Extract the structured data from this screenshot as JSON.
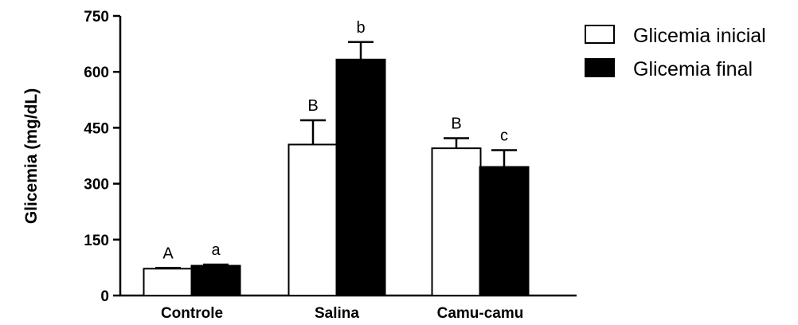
{
  "chart_data": {
    "type": "bar",
    "ylabel": "Glicemia (mg/dL)",
    "xlabel": "",
    "ylim": [
      0,
      750
    ],
    "yticks": [
      0,
      150,
      300,
      450,
      600,
      750
    ],
    "categories": [
      "Controle",
      "Salina",
      "Camu-camu"
    ],
    "series": [
      {
        "name": "Glicemia inicial",
        "fill": "#ffffff",
        "values": [
          72,
          405,
          395
        ],
        "errors": [
          2,
          65,
          27
        ],
        "labels": [
          "A",
          "B",
          "B"
        ]
      },
      {
        "name": "Glicemia final",
        "fill": "#000000",
        "values": [
          80,
          633,
          345
        ],
        "errors": [
          3,
          47,
          45
        ],
        "labels": [
          "a",
          "b",
          "c"
        ]
      }
    ],
    "legend_position": "top-right",
    "grid": false
  }
}
